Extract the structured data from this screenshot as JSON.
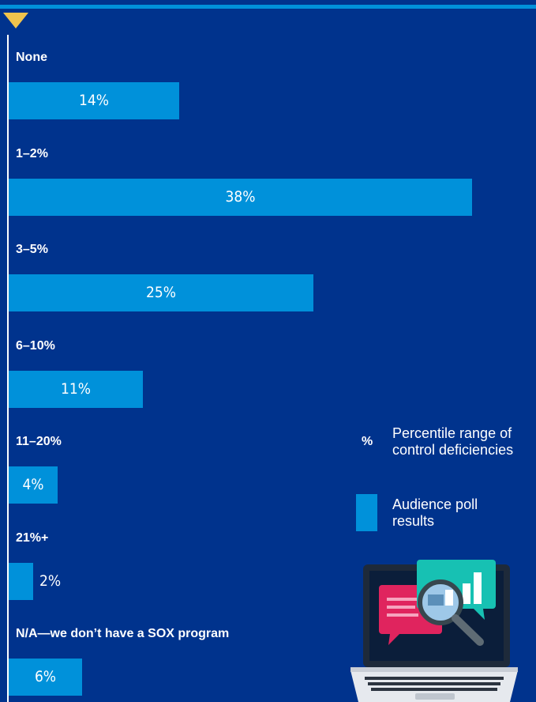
{
  "chart_data": {
    "type": "bar",
    "orientation": "horizontal",
    "title": "",
    "xlabel": "",
    "ylabel": "",
    "categories": [
      "None",
      "1–2%",
      "3–5%",
      "6–10%",
      "11–20%",
      "21%+",
      "N/A—we don’t have a SOX program"
    ],
    "values": [
      14,
      38,
      25,
      11,
      4,
      2,
      6
    ],
    "value_labels": [
      "14%",
      "38%",
      "25%",
      "11%",
      "4%",
      "2%",
      "6%"
    ],
    "xlim": [
      0,
      100
    ],
    "grid": false,
    "legend_position": "right",
    "legend": [
      {
        "symbol": "%",
        "label": "Percentile range of control deficiencies"
      },
      {
        "symbol": "swatch",
        "label": "Audience poll results"
      }
    ]
  },
  "colors": {
    "background": "#00338D",
    "bar": "#0091DA",
    "accent_marker": "#F1C44D",
    "text": "#FFFFFF"
  },
  "icons": [
    "laptop-analytics-icon",
    "magnifier-icon",
    "chat-bubble-icon",
    "bar-chart-icon"
  ]
}
